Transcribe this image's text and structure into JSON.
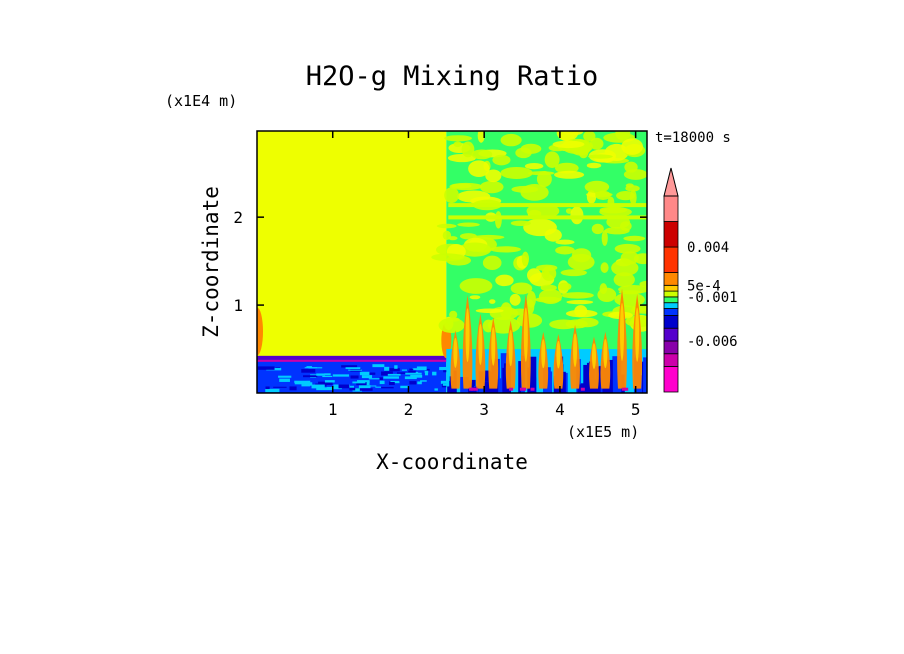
{
  "chart_data": {
    "type": "heatmap",
    "title": "H2O-g Mixing Ratio",
    "xlabel": "X-coordinate",
    "ylabel": "Z-coordinate",
    "x_unit_label": "(x1E5 m)",
    "y_unit_label": "(x1E4 m)",
    "time_label": "t=18000 s",
    "xlim": [
      0.0,
      5.15
    ],
    "ylim": [
      0.0,
      2.98
    ],
    "x_ticks": [
      1,
      2,
      3,
      4,
      5
    ],
    "y_ticks": [
      1,
      2
    ],
    "x_tick_labels": [
      "1",
      "2",
      "3",
      "4",
      "5"
    ],
    "y_tick_labels": [
      "1",
      "2"
    ],
    "colorbar": {
      "colors": [
        "#ff00cc",
        "#cc00aa",
        "#8800aa",
        "#5500cc",
        "#0000cc",
        "#0033ff",
        "#00ccff",
        "#33ff66",
        "#ccff00",
        "#ffcc00",
        "#ff8800",
        "#ff3300",
        "#cc0000",
        "#ff8888"
      ],
      "extend_max_color": "#ff9999",
      "labels": [
        {
          "text": "0.004",
          "level": 0.004
        },
        {
          "text": "5e-4",
          "level": 0.0005
        },
        {
          "text": "-0.001",
          "level": -0.001
        },
        {
          "text": "-0.006",
          "level": -0.006
        }
      ]
    },
    "regions": [
      {
        "name": "left-plateau",
        "x": [
          0.0,
          2.5
        ],
        "z": [
          0.4,
          2.98
        ],
        "color": "#eeff00"
      },
      {
        "name": "left-boundary-layer",
        "x": [
          0.0,
          2.5
        ],
        "z": [
          0.0,
          0.4
        ],
        "color": "#0033ff"
      },
      {
        "name": "right-mixed-region",
        "x": [
          2.5,
          5.15
        ],
        "z": [
          0.0,
          2.98
        ],
        "color": "#33ff66"
      }
    ]
  }
}
